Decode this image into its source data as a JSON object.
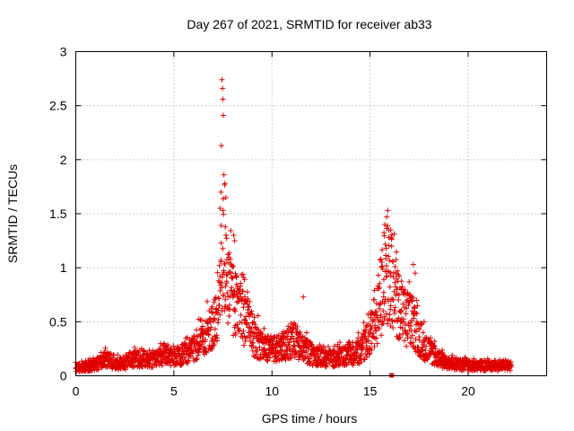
{
  "chart_data": {
    "type": "scatter",
    "title": "Day 267 of 2021, SRMTID for receiver ab33",
    "xlabel": "GPS time / hours",
    "ylabel": "SRMTID / TECUs",
    "xlim": [
      0,
      24
    ],
    "ylim": [
      0,
      3
    ],
    "xticks": [
      0,
      5,
      10,
      15,
      20
    ],
    "yticks": [
      0,
      0.5,
      1,
      1.5,
      2,
      2.5,
      3
    ],
    "xtick_labels": [
      "0",
      "5",
      "10",
      "15",
      "20"
    ],
    "ytick_labels": [
      "0",
      "0.5",
      "1",
      "1.5",
      "2",
      "2.5",
      "3"
    ],
    "grid": true,
    "marker": "+",
    "marker_color": "#e00000",
    "x_range_of_data": [
      0,
      22.2
    ],
    "profile": [
      [
        0.0,
        0.08
      ],
      [
        0.5,
        0.09
      ],
      [
        1.0,
        0.11
      ],
      [
        1.5,
        0.17
      ],
      [
        2.0,
        0.13
      ],
      [
        2.5,
        0.12
      ],
      [
        3.0,
        0.17
      ],
      [
        3.5,
        0.18
      ],
      [
        4.0,
        0.16
      ],
      [
        4.5,
        0.22
      ],
      [
        5.0,
        0.2
      ],
      [
        5.5,
        0.22
      ],
      [
        6.0,
        0.28
      ],
      [
        6.5,
        0.4
      ],
      [
        7.0,
        0.48
      ],
      [
        7.3,
        0.7
      ],
      [
        7.5,
        1.3
      ],
      [
        7.7,
        1.0
      ],
      [
        8.0,
        0.8
      ],
      [
        8.5,
        0.6
      ],
      [
        9.0,
        0.42
      ],
      [
        9.5,
        0.3
      ],
      [
        10.0,
        0.26
      ],
      [
        10.5,
        0.3
      ],
      [
        11.0,
        0.35
      ],
      [
        11.5,
        0.3
      ],
      [
        12.0,
        0.22
      ],
      [
        12.5,
        0.18
      ],
      [
        13.0,
        0.18
      ],
      [
        13.5,
        0.2
      ],
      [
        14.0,
        0.2
      ],
      [
        14.5,
        0.26
      ],
      [
        15.0,
        0.4
      ],
      [
        15.5,
        0.75
      ],
      [
        15.8,
        1.1
      ],
      [
        16.2,
        0.9
      ],
      [
        16.7,
        0.6
      ],
      [
        17.0,
        0.6
      ],
      [
        17.5,
        0.4
      ],
      [
        18.0,
        0.25
      ],
      [
        18.5,
        0.17
      ],
      [
        19.0,
        0.12
      ],
      [
        19.5,
        0.12
      ],
      [
        20.0,
        0.11
      ],
      [
        21.0,
        0.1
      ],
      [
        22.2,
        0.1
      ]
    ],
    "outliers": [
      {
        "x": 7.45,
        "y": 2.74
      },
      {
        "x": 7.48,
        "y": 2.66
      },
      {
        "x": 7.5,
        "y": 2.56
      },
      {
        "x": 7.52,
        "y": 2.41
      },
      {
        "x": 7.42,
        "y": 2.13
      },
      {
        "x": 7.55,
        "y": 1.86
      },
      {
        "x": 7.6,
        "y": 1.78
      },
      {
        "x": 7.4,
        "y": 1.7
      },
      {
        "x": 7.65,
        "y": 1.65
      },
      {
        "x": 7.35,
        "y": 1.55
      },
      {
        "x": 15.9,
        "y": 1.53
      },
      {
        "x": 15.85,
        "y": 1.47
      },
      {
        "x": 15.75,
        "y": 1.4
      },
      {
        "x": 16.05,
        "y": 1.35
      },
      {
        "x": 15.95,
        "y": 1.28
      },
      {
        "x": 16.1,
        "y": 1.2
      },
      {
        "x": 8.05,
        "y": 1.3
      },
      {
        "x": 8.1,
        "y": 1.25
      },
      {
        "x": 11.6,
        "y": 0.73
      },
      {
        "x": 17.2,
        "y": 1.03
      },
      {
        "x": 17.3,
        "y": 0.95
      }
    ],
    "special_markers": [
      {
        "x": 16.1,
        "y": 0.0,
        "shape": "square"
      }
    ]
  }
}
